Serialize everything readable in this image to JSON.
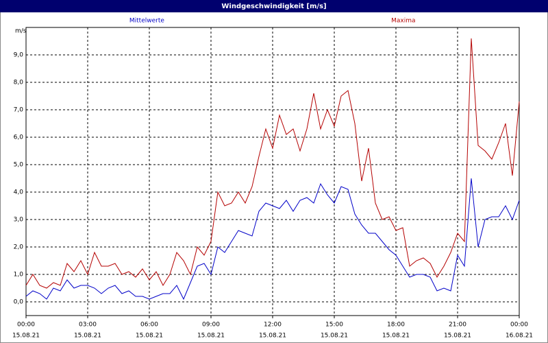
{
  "chart_data": {
    "type": "line",
    "title": "Windgeschwindigkeit [m/s]",
    "y_label": "m/s",
    "x": [
      0,
      20,
      40,
      60,
      80,
      100,
      120,
      140,
      160,
      180,
      200,
      220,
      240,
      260,
      280,
      300,
      320,
      340,
      360,
      380,
      400,
      420,
      440,
      460,
      480,
      500,
      520,
      540,
      560,
      580,
      600,
      620,
      640,
      660,
      680,
      700,
      720,
      740,
      760,
      780,
      800,
      820,
      840,
      860,
      880,
      900,
      920,
      940,
      960,
      980,
      1000,
      1020,
      1040,
      1060,
      1080,
      1100,
      1120,
      1140,
      1160,
      1180,
      1200,
      1220,
      1240,
      1260,
      1280,
      1300,
      1320,
      1340,
      1360,
      1380,
      1400,
      1420,
      1440
    ],
    "series": [
      {
        "name": "Mittelwerte",
        "color": "#0000c8",
        "values": [
          0.2,
          0.4,
          0.3,
          0.1,
          0.5,
          0.4,
          0.8,
          0.5,
          0.6,
          0.6,
          0.5,
          0.3,
          0.5,
          0.6,
          0.3,
          0.4,
          0.2,
          0.2,
          0.1,
          0.2,
          0.3,
          0.3,
          0.6,
          0.1,
          0.7,
          1.3,
          1.4,
          1.0,
          2.0,
          1.8,
          2.2,
          2.6,
          2.5,
          2.4,
          3.3,
          3.6,
          3.5,
          3.4,
          3.7,
          3.3,
          3.7,
          3.8,
          3.6,
          4.3,
          3.9,
          3.6,
          4.2,
          4.1,
          3.2,
          2.8,
          2.5,
          2.5,
          2.2,
          1.9,
          1.7,
          1.3,
          0.9,
          1.0,
          1.0,
          0.9,
          0.4,
          0.5,
          0.4,
          1.7,
          1.3,
          4.5,
          2.0,
          3.0,
          3.1,
          3.1,
          3.5,
          3.0,
          3.7
        ]
      },
      {
        "name": "Maxima",
        "color": "#b40000",
        "values": [
          0.6,
          1.0,
          0.6,
          0.5,
          0.7,
          0.6,
          1.4,
          1.1,
          1.5,
          1.0,
          1.8,
          1.3,
          1.3,
          1.4,
          1.0,
          1.1,
          0.9,
          1.2,
          0.8,
          1.1,
          0.6,
          1.0,
          1.8,
          1.5,
          1.0,
          2.0,
          1.7,
          2.2,
          4.0,
          3.5,
          3.6,
          4.0,
          3.6,
          4.2,
          5.3,
          6.3,
          5.6,
          6.8,
          6.1,
          6.3,
          5.5,
          6.3,
          7.6,
          6.3,
          7.0,
          6.4,
          7.5,
          7.7,
          6.5,
          4.4,
          5.6,
          3.6,
          3.0,
          3.1,
          2.6,
          2.7,
          1.3,
          1.5,
          1.6,
          1.4,
          0.9,
          1.3,
          1.8,
          2.5,
          2.2,
          9.6,
          5.7,
          5.5,
          5.2,
          5.8,
          6.5,
          4.6,
          7.3
        ]
      }
    ],
    "xlim": [
      0,
      1440
    ],
    "xticks": [
      {
        "value": 0,
        "label": "00:00",
        "date": "15.08.21"
      },
      {
        "value": 180,
        "label": "03:00",
        "date": "15.08.21"
      },
      {
        "value": 360,
        "label": "06:00",
        "date": "15.08.21"
      },
      {
        "value": 540,
        "label": "09:00",
        "date": "15.08.21"
      },
      {
        "value": 720,
        "label": "12:00",
        "date": "15.08.21"
      },
      {
        "value": 900,
        "label": "15:00",
        "date": "15.08.21"
      },
      {
        "value": 1080,
        "label": "18:00",
        "date": "15.08.21"
      },
      {
        "value": 1260,
        "label": "21:00",
        "date": "15.08.21"
      },
      {
        "value": 1440,
        "label": "00:00",
        "date": "16.08.21"
      }
    ],
    "ylim": [
      -0.5,
      10
    ],
    "yticks": [
      {
        "value": 0,
        "label": "0,0"
      },
      {
        "value": 1,
        "label": "1,0"
      },
      {
        "value": 2,
        "label": "2,0"
      },
      {
        "value": 3,
        "label": "3,0"
      },
      {
        "value": 4,
        "label": "4,0"
      },
      {
        "value": 5,
        "label": "5,0"
      },
      {
        "value": 6,
        "label": "6,0"
      },
      {
        "value": 7,
        "label": "7,0"
      },
      {
        "value": 8,
        "label": "8,0"
      },
      {
        "value": 9,
        "label": "9,0"
      }
    ],
    "grid": true
  }
}
